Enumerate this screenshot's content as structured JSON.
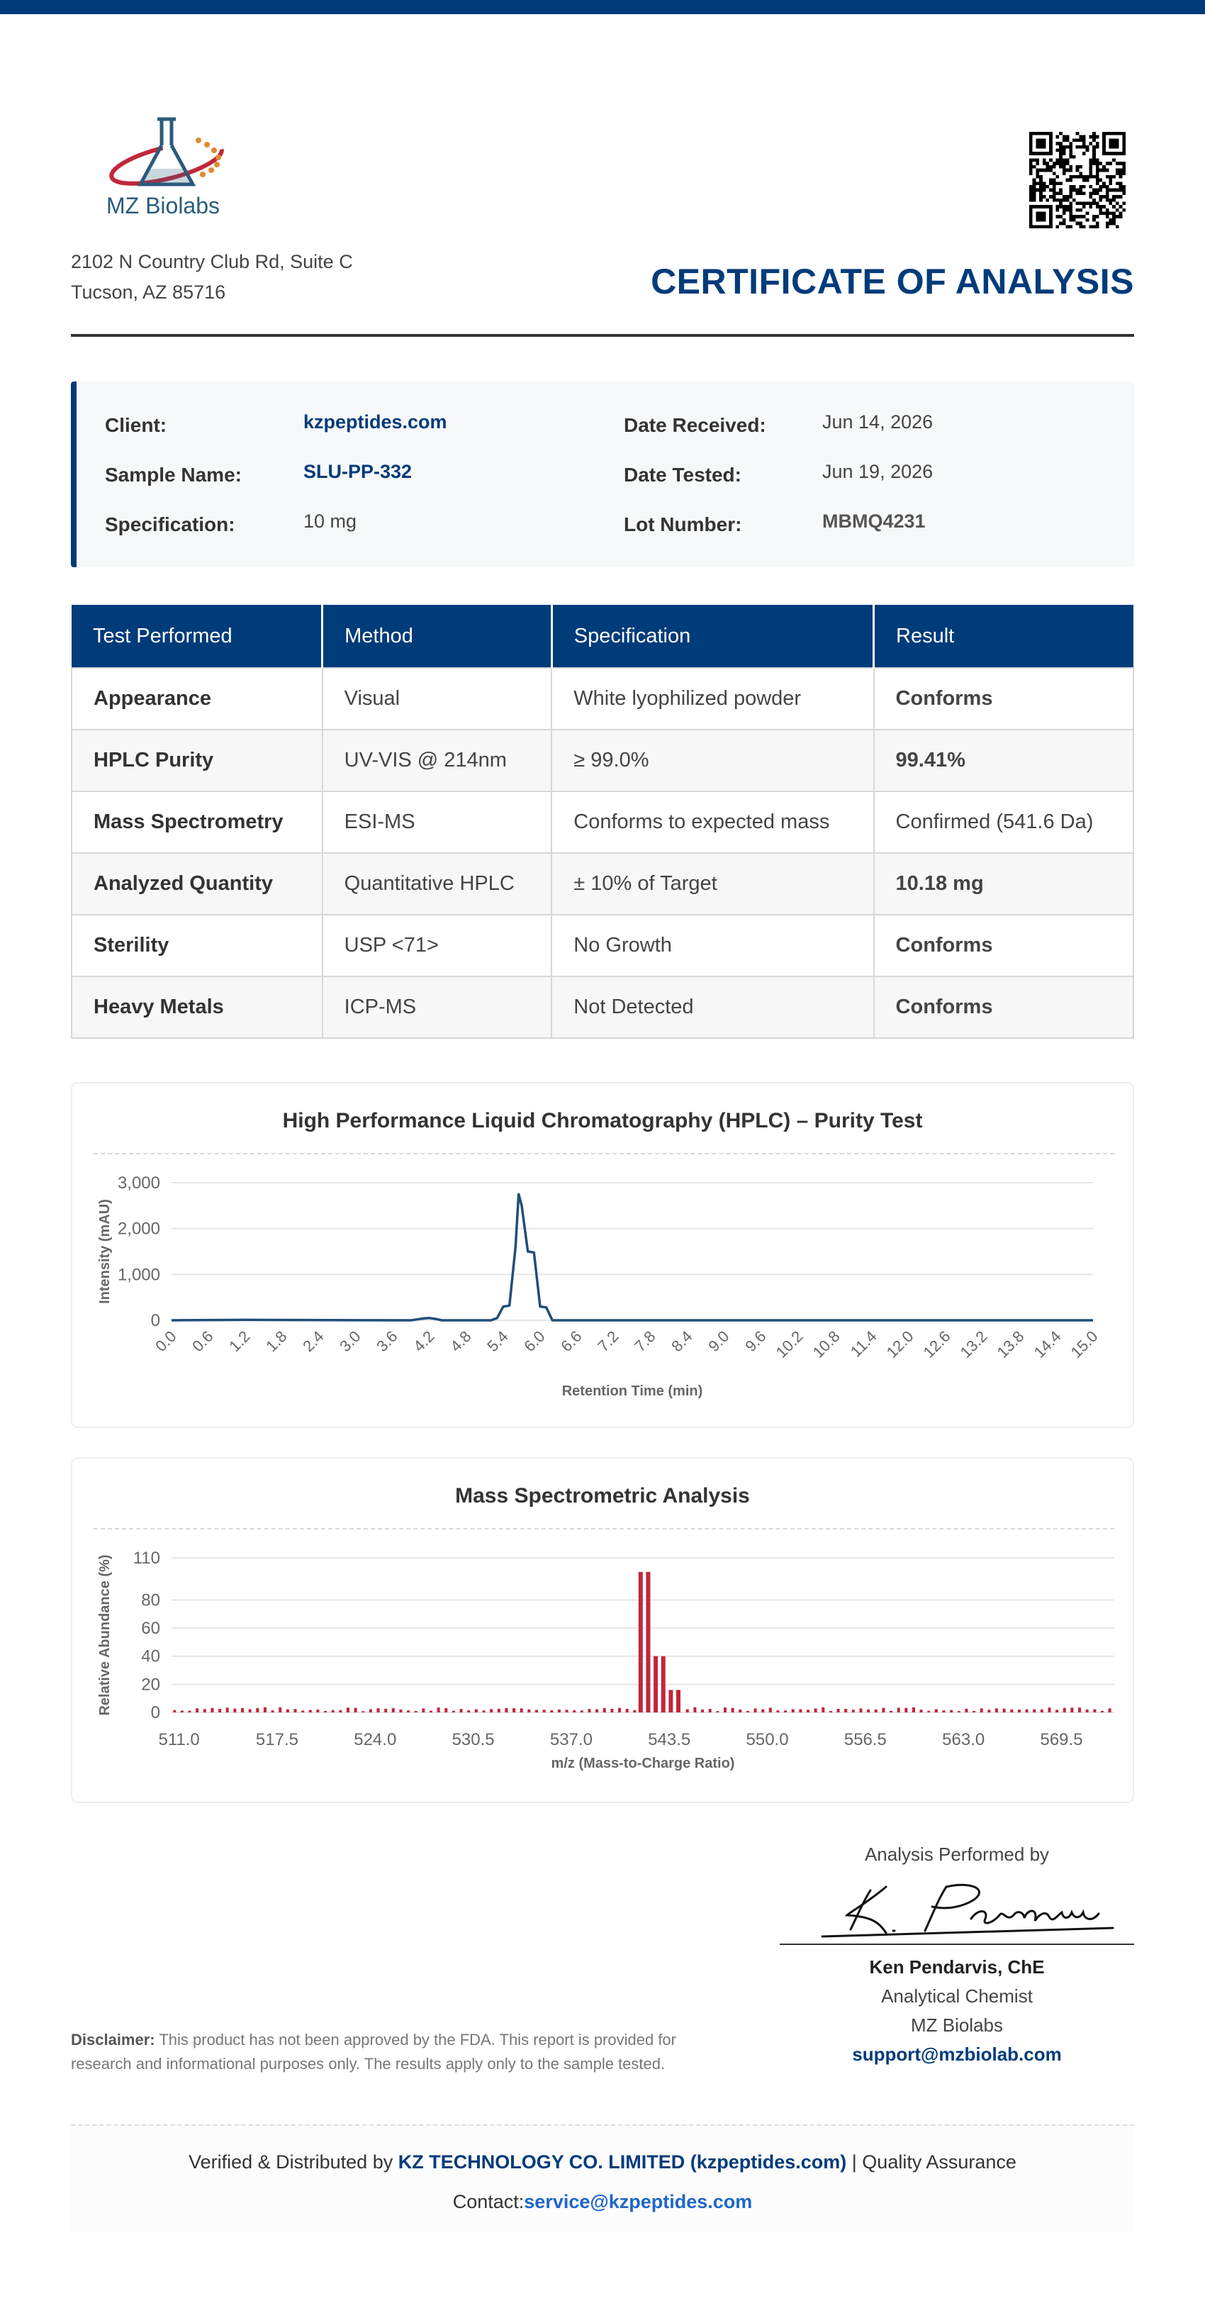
{
  "header": {
    "logo_text": "MZ Biolabs",
    "address_line1": "2102 N Country Club Rd, Suite C",
    "address_line2": "Tucson, AZ 85716",
    "title": "CERTIFICATE OF ANALYSIS"
  },
  "info": {
    "client_label": "Client:",
    "client_value": "kzpeptides.com",
    "sample_label": "Sample Name:",
    "sample_value": "SLU-PP-332",
    "spec_label": "Specification:",
    "spec_value": "10 mg",
    "received_label": "Date Received:",
    "received_value": "Jun 14, 2026",
    "tested_label": "Date Tested:",
    "tested_value": "Jun 19, 2026",
    "lot_label": "Lot Number:",
    "lot_value": "MBMQ4231"
  },
  "table": {
    "headers": [
      "Test Performed",
      "Method",
      "Specification",
      "Result"
    ],
    "rows": [
      {
        "test": "Appearance",
        "method": "Visual",
        "spec": "White lyophilized powder",
        "result": "Conforms"
      },
      {
        "test": "HPLC Purity",
        "method": "UV-VIS @ 214nm",
        "spec": "≥ 99.0%",
        "result": "99.41%"
      },
      {
        "test": "Mass Spectrometry",
        "method": "ESI-MS",
        "spec": "Conforms to expected mass",
        "result": "Confirmed (541.6 Da)"
      },
      {
        "test": "Analyzed Quantity",
        "method": "Quantitative HPLC",
        "spec": "± 10% of Target",
        "result": "10.18 mg"
      },
      {
        "test": "Sterility",
        "method": "USP <71>",
        "spec": "No Growth",
        "result": "Conforms"
      },
      {
        "test": "Heavy Metals",
        "method": "ICP-MS",
        "spec": "Not Detected",
        "result": "Conforms"
      }
    ]
  },
  "chart_data": [
    {
      "type": "line",
      "title": "High Performance Liquid Chromatography (HPLC) – Purity Test",
      "xlabel": "Retention Time (min)",
      "ylabel": "Intensity (mAU)",
      "xlim": [
        0,
        15
      ],
      "ylim": [
        0,
        3000
      ],
      "yticks": [
        "0",
        "1,000",
        "2,000",
        "3,000"
      ],
      "xticks": [
        "0.0",
        "0.6",
        "1.2",
        "1.8",
        "2.4",
        "3.0",
        "3.6",
        "4.2",
        "4.8",
        "5.4",
        "6.0",
        "6.6",
        "7.2",
        "7.8",
        "8.4",
        "9.0",
        "9.6",
        "10.2",
        "10.8",
        "11.4",
        "12.0",
        "12.6",
        "13.2",
        "13.8",
        "14.4",
        "15.0"
      ],
      "grid": true,
      "color": "#1f4e79",
      "series": [
        {
          "x": [
            0,
            1.2,
            3.9,
            4.0,
            4.1,
            4.2,
            4.3,
            4.4,
            5.2,
            5.3,
            5.4,
            5.5,
            5.6,
            5.65,
            5.7,
            5.8,
            5.9,
            6.0,
            6.1,
            6.2,
            6.3,
            15.0
          ],
          "y": [
            0,
            10,
            0,
            20,
            40,
            50,
            30,
            0,
            0,
            50,
            300,
            320,
            1600,
            2750,
            2500,
            1500,
            1480,
            300,
            280,
            0,
            0,
            0
          ]
        }
      ]
    },
    {
      "type": "bar",
      "title": "Mass Spectrometric Analysis",
      "xlabel": "m/z (Mass-to-Charge Ratio)",
      "ylabel": "Relative Abundance (%)",
      "xlim": [
        510.5,
        573.0
      ],
      "ylim": [
        0,
        110
      ],
      "yticks": [
        "0",
        "20",
        "40",
        "60",
        "80",
        "110"
      ],
      "ytick_values": [
        0,
        20,
        40,
        60,
        80,
        110
      ],
      "xticks": [
        "511.0",
        "517.5",
        "524.0",
        "530.5",
        "537.0",
        "543.5",
        "550.0",
        "556.5",
        "563.0",
        "569.5"
      ],
      "xtick_values": [
        511.0,
        517.5,
        524.0,
        530.5,
        537.0,
        543.5,
        550.0,
        556.5,
        563.0,
        569.5
      ],
      "grid": true,
      "color": "#c0273a",
      "peaks": [
        {
          "x": 541.6,
          "y": 100
        },
        {
          "x": 542.1,
          "y": 100
        },
        {
          "x": 542.6,
          "y": 40
        },
        {
          "x": 543.1,
          "y": 40
        },
        {
          "x": 543.6,
          "y": 16
        },
        {
          "x": 544.1,
          "y": 16
        }
      ],
      "noise_level": 3
    }
  ],
  "signature": {
    "caption": "Analysis Performed by",
    "name": "Ken Pendarvis, ChE",
    "role": "Analytical Chemist",
    "org": "MZ Biolabs",
    "email": "support@mzbiolab.com"
  },
  "disclaimer": {
    "label": "Disclaimer:",
    "text": " This product has not been approved by the FDA. This report is provided for research and informational purposes only. The results apply only to the sample tested."
  },
  "footer": {
    "verified_prefix": "Verified & Distributed by ",
    "company": "KZ TECHNOLOGY CO. LIMITED (kzpeptides.com)",
    "suffix": " | Quality Assurance",
    "contact_label": "Contact:",
    "contact_email": "service@kzpeptides.com"
  }
}
